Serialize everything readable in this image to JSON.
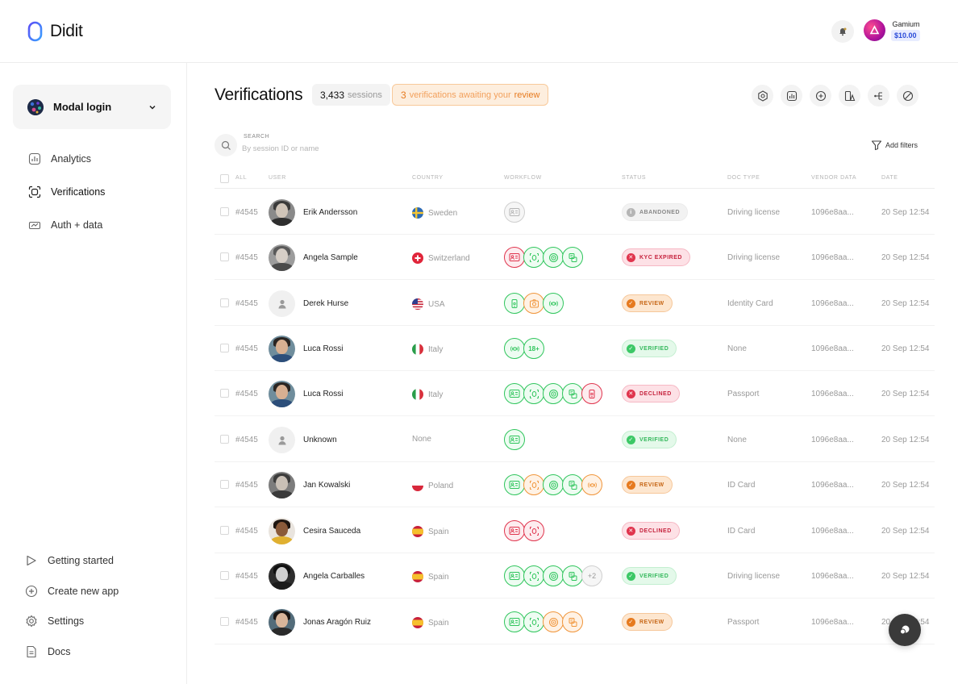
{
  "brand": {
    "name": "Didit"
  },
  "account": {
    "name": "Gamium",
    "balance": "$10.00"
  },
  "sidebar": {
    "app_name": "Modal login",
    "nav": [
      {
        "label": "Analytics",
        "icon": "chart-icon"
      },
      {
        "label": "Verifications",
        "icon": "scan-icon"
      },
      {
        "label": "Auth + data",
        "icon": "auth-icon"
      }
    ],
    "bottom_nav": [
      {
        "label": "Getting started",
        "icon": "play-icon"
      },
      {
        "label": "Create new app",
        "icon": "plus-circle-icon"
      },
      {
        "label": "Settings",
        "icon": "gear-icon"
      },
      {
        "label": "Docs",
        "icon": "doc-icon"
      }
    ]
  },
  "main": {
    "title": "Verifications",
    "sessions_count": "3,433",
    "sessions_label": "sessions",
    "review_count": "3",
    "review_text": "verifications awaiting your",
    "review_strong": "review",
    "search_label": "SEARCH",
    "search_placeholder": "By session ID or name",
    "add_filters": "Add filters"
  },
  "table": {
    "columns": {
      "all": "ALL",
      "user": "USER",
      "country": "COUNTRY",
      "workflow": "WORKFLOW",
      "status": "STATUS",
      "doc_type": "DOC TYPE",
      "vendor_data": "VENDOR DATA",
      "date": "DATE"
    },
    "rows": [
      {
        "id": "#4545",
        "name": "Erik Andersson",
        "country": "Sweden",
        "flag": "se",
        "steps": [
          [
            "grey",
            "id"
          ]
        ],
        "status": "ABANDONED",
        "status_kind": "abandoned",
        "doc_type": "Driving license",
        "vendor": "1096e8aa...",
        "date": "20 Sep 12:54",
        "avatar": "erik"
      },
      {
        "id": "#4545",
        "name": "Angela Sample",
        "country": "Switzerland",
        "flag": "ch",
        "steps": [
          [
            "red",
            "id"
          ],
          [
            "green",
            "face"
          ],
          [
            "green",
            "liveness"
          ],
          [
            "green",
            "doc"
          ]
        ],
        "status": "KYC EXPIRED",
        "status_kind": "expired",
        "doc_type": "Driving license",
        "vendor": "1096e8aa...",
        "date": "20 Sep 12:54",
        "avatar": "angela_s"
      },
      {
        "id": "#4545",
        "name": "Derek Hurse",
        "country": "USA",
        "flag": "us",
        "steps": [
          [
            "green",
            "phone"
          ],
          [
            "orange",
            "selfie"
          ],
          [
            "green",
            "geo"
          ]
        ],
        "status": "REVIEW",
        "status_kind": "review",
        "doc_type": "Identity Card",
        "vendor": "1096e8aa...",
        "date": "20 Sep 12:54",
        "avatar": "placeholder"
      },
      {
        "id": "#4545",
        "name": "Luca Rossi",
        "country": "Italy",
        "flag": "it",
        "steps": [
          [
            "green",
            "geo"
          ],
          [
            "green",
            "age"
          ]
        ],
        "status": "VERIFIED",
        "status_kind": "verified",
        "doc_type": "None",
        "vendor": "1096e8aa...",
        "date": "20 Sep 12:54",
        "avatar": "luca"
      },
      {
        "id": "#4545",
        "name": "Luca Rossi",
        "country": "Italy",
        "flag": "it",
        "steps": [
          [
            "green",
            "id"
          ],
          [
            "green",
            "face"
          ],
          [
            "green",
            "liveness"
          ],
          [
            "green",
            "doc"
          ],
          [
            "red",
            "phone"
          ]
        ],
        "status": "DECLINED",
        "status_kind": "declined",
        "doc_type": "Passport",
        "vendor": "1096e8aa...",
        "date": "20 Sep 12:54",
        "avatar": "luca"
      },
      {
        "id": "#4545",
        "name": "Unknown",
        "country": "None",
        "flag": "",
        "steps": [
          [
            "green",
            "id"
          ]
        ],
        "status": "VERIFIED",
        "status_kind": "verified",
        "doc_type": "None",
        "vendor": "1096e8aa...",
        "date": "20 Sep 12:54",
        "avatar": "placeholder"
      },
      {
        "id": "#4545",
        "name": "Jan Kowalski",
        "country": "Poland",
        "flag": "pl",
        "steps": [
          [
            "green",
            "id"
          ],
          [
            "orange",
            "face"
          ],
          [
            "green",
            "liveness"
          ],
          [
            "green",
            "doc"
          ],
          [
            "orange",
            "geo"
          ]
        ],
        "status": "REVIEW",
        "status_kind": "review",
        "doc_type": "ID Card",
        "vendor": "1096e8aa...",
        "date": "20 Sep 12:54",
        "avatar": "jan"
      },
      {
        "id": "#4545",
        "name": "Cesira Sauceda",
        "country": "Spain",
        "flag": "es",
        "steps": [
          [
            "red",
            "id"
          ],
          [
            "red",
            "face"
          ]
        ],
        "status": "DECLINED",
        "status_kind": "declined",
        "doc_type": "ID Card",
        "vendor": "1096e8aa...",
        "date": "20 Sep 12:54",
        "avatar": "cesira"
      },
      {
        "id": "#4545",
        "name": "Angela Carballes",
        "country": "Spain",
        "flag": "es",
        "steps": [
          [
            "green",
            "id"
          ],
          [
            "green",
            "face"
          ],
          [
            "green",
            "liveness"
          ],
          [
            "green",
            "doc"
          ],
          [
            "grey",
            "+2"
          ]
        ],
        "status": "VERIFIED",
        "status_kind": "verified",
        "doc_type": "Driving license",
        "vendor": "1096e8aa...",
        "date": "20 Sep 12:54",
        "avatar": "angela_c"
      },
      {
        "id": "#4545",
        "name": "Jonas Aragón Ruiz",
        "country": "Spain",
        "flag": "es",
        "steps": [
          [
            "green",
            "id"
          ],
          [
            "green",
            "face"
          ],
          [
            "orange",
            "liveness"
          ],
          [
            "orange",
            "doc"
          ]
        ],
        "status": "REVIEW",
        "status_kind": "review",
        "doc_type": "Passport",
        "vendor": "1096e8aa...",
        "date": "20 Sep 12:54",
        "avatar": "jonas"
      }
    ]
  },
  "colors": {
    "green": "#2fc55c",
    "red": "#e0344d",
    "orange": "#f0953a",
    "accent_blue": "#2a4bd8"
  }
}
